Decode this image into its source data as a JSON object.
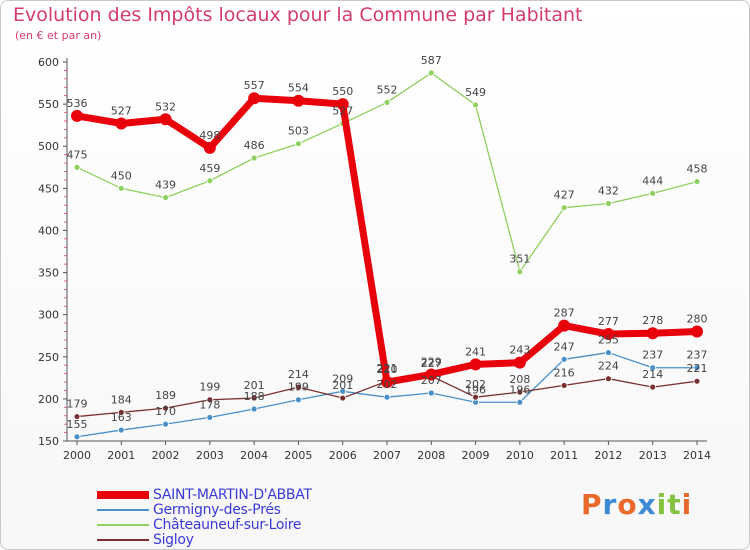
{
  "title": "Evolution des Impôts locaux pour la Commune par Habitant",
  "subtitle": "(en € et par an)",
  "brand": {
    "letters": [
      {
        "ch": "P",
        "color": "#e8692b"
      },
      {
        "ch": "r",
        "color": "#3d8ad4"
      },
      {
        "ch": "o",
        "color": "#e8692b"
      },
      {
        "ch": "x",
        "color": "#3d8ad4"
      },
      {
        "ch": "i",
        "color": "#84c341"
      },
      {
        "ch": "t",
        "color": "#84c341"
      },
      {
        "ch": "i",
        "color": "#e8692b"
      }
    ]
  },
  "chart_data": {
    "type": "line",
    "title": "Evolution des Impôts locaux pour la Commune par Habitant",
    "subtitle": "(en € et par an)",
    "x": [
      "2000",
      "2001",
      "2002",
      "2003",
      "2004",
      "2005",
      "2006",
      "2007",
      "2008",
      "2009",
      "2010",
      "2011",
      "2012",
      "2013",
      "2014"
    ],
    "ylim": [
      150,
      600
    ],
    "yticks": [
      150,
      200,
      250,
      300,
      350,
      400,
      450,
      500,
      550,
      600
    ],
    "grid": false,
    "legend_position": "bottom-left",
    "series": [
      {
        "name": "SAINT-MARTIN-D'ABBAT",
        "color": "#e8000b",
        "thick": true,
        "values": [
          536,
          527,
          532,
          498,
          557,
          554,
          550,
          220,
          229,
          241,
          243,
          287,
          277,
          278,
          280
        ]
      },
      {
        "name": "Germigny-des-Prés",
        "color": "#4a90c8",
        "thick": false,
        "values": [
          155,
          163,
          170,
          178,
          188,
          199,
          209,
          202,
          207,
          196,
          196,
          247,
          255,
          237,
          237
        ]
      },
      {
        "name": "Châteauneuf-sur-Loire",
        "color": "#90d060",
        "thick": false,
        "values": [
          475,
          450,
          439,
          459,
          486,
          503,
          527,
          552,
          587,
          549,
          351,
          427,
          432,
          444,
          458
        ]
      },
      {
        "name": "Sigloy",
        "color": "#7a3030",
        "thick": false,
        "values": [
          179,
          184,
          189,
          199,
          201,
          214,
          201,
          221,
          227,
          202,
          208,
          216,
          224,
          214,
          221
        ]
      }
    ]
  }
}
